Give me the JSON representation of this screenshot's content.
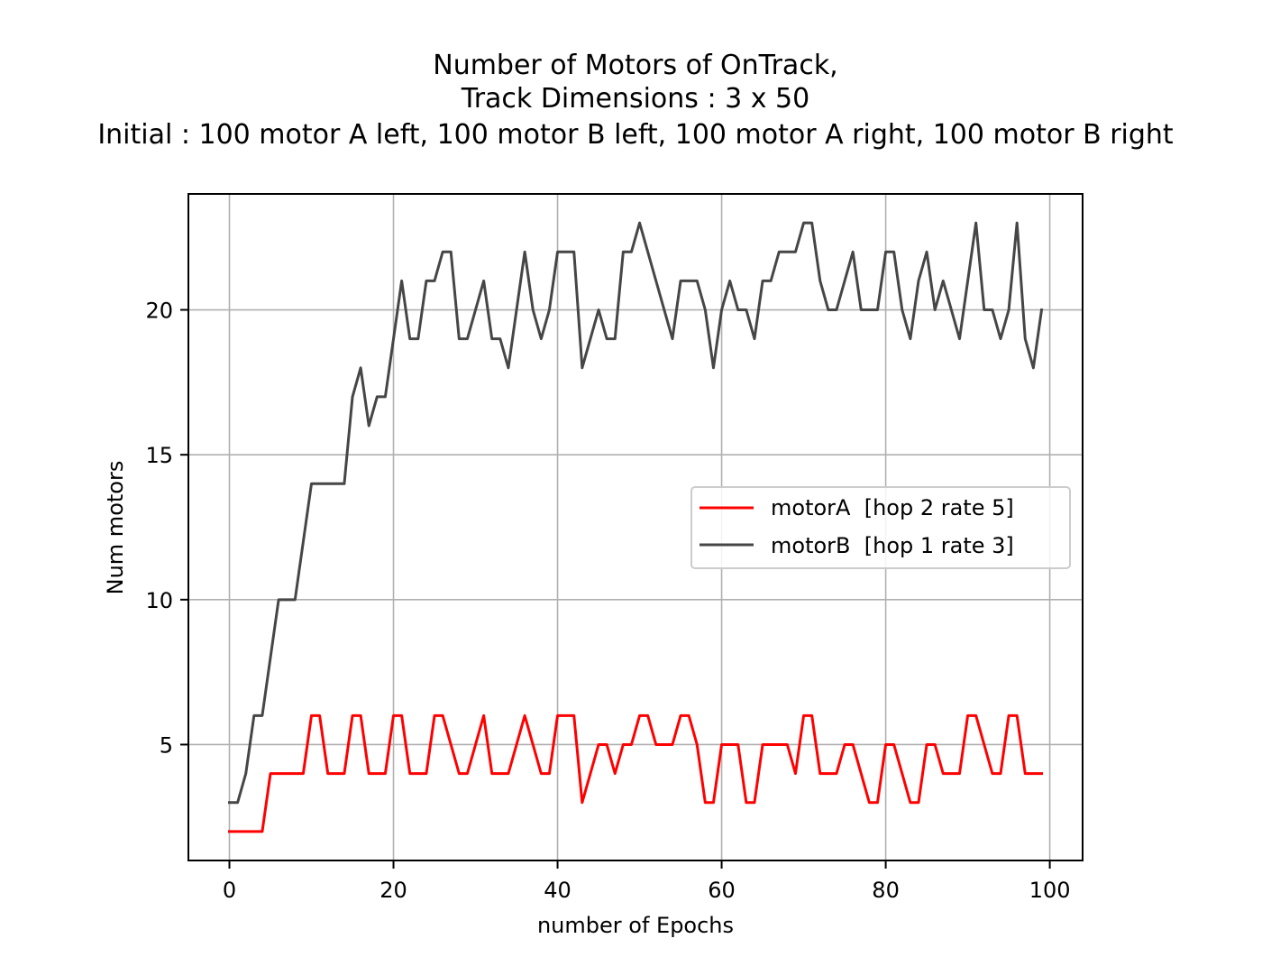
{
  "chart_data": {
    "type": "line",
    "title_lines": [
      "Number of Motors of OnTrack,",
      "Track Dimensions : 3 x 50",
      "Initial : 100 motor A left, 100 motor B left, 100 motor A right, 100 motor B right"
    ],
    "xlabel": "number of Epochs",
    "ylabel": "Num motors",
    "xlim": [
      -5,
      104
    ],
    "ylim": [
      1,
      24
    ],
    "xticks": [
      0,
      20,
      40,
      60,
      80,
      100
    ],
    "yticks": [
      5,
      10,
      15,
      20
    ],
    "grid": true,
    "legend_position": "center-right",
    "series": [
      {
        "name": "motorA  [hop 2 rate 5]",
        "color": "#ff0000",
        "x": [
          0,
          1,
          2,
          3,
          4,
          5,
          6,
          7,
          8,
          9,
          10,
          11,
          12,
          13,
          14,
          15,
          16,
          17,
          18,
          19,
          20,
          21,
          22,
          23,
          24,
          25,
          26,
          27,
          28,
          29,
          30,
          31,
          32,
          33,
          34,
          35,
          36,
          37,
          38,
          39,
          40,
          41,
          42,
          43,
          44,
          45,
          46,
          47,
          48,
          49,
          50,
          51,
          52,
          53,
          54,
          55,
          56,
          57,
          58,
          59,
          60,
          61,
          62,
          63,
          64,
          65,
          66,
          67,
          68,
          69,
          70,
          71,
          72,
          73,
          74,
          75,
          76,
          77,
          78,
          79,
          80,
          81,
          82,
          83,
          84,
          85,
          86,
          87,
          88,
          89,
          90,
          91,
          92,
          93,
          94,
          95,
          96,
          97,
          98,
          99
        ],
        "values": [
          2,
          2,
          2,
          2,
          2,
          4,
          4,
          4,
          4,
          4,
          6,
          6,
          4,
          4,
          4,
          6,
          6,
          4,
          4,
          4,
          6,
          6,
          4,
          4,
          4,
          6,
          6,
          5,
          4,
          4,
          5,
          6,
          4,
          4,
          4,
          5,
          6,
          5,
          4,
          4,
          6,
          6,
          6,
          3,
          4,
          5,
          5,
          4,
          5,
          5,
          6,
          6,
          5,
          5,
          5,
          6,
          6,
          5,
          3,
          3,
          5,
          5,
          5,
          3,
          3,
          5,
          5,
          5,
          5,
          4,
          6,
          6,
          4,
          4,
          4,
          5,
          5,
          4,
          3,
          3,
          5,
          5,
          4,
          3,
          3,
          5,
          5,
          4,
          4,
          4,
          6,
          6,
          5,
          4,
          4,
          6,
          6,
          4,
          4,
          4
        ]
      },
      {
        "name": "motorB  [hop 1 rate 3]",
        "color": "#464646",
        "x": [
          0,
          1,
          2,
          3,
          4,
          5,
          6,
          7,
          8,
          9,
          10,
          11,
          12,
          13,
          14,
          15,
          16,
          17,
          18,
          19,
          20,
          21,
          22,
          23,
          24,
          25,
          26,
          27,
          28,
          29,
          30,
          31,
          32,
          33,
          34,
          35,
          36,
          37,
          38,
          39,
          40,
          41,
          42,
          43,
          44,
          45,
          46,
          47,
          48,
          49,
          50,
          51,
          52,
          53,
          54,
          55,
          56,
          57,
          58,
          59,
          60,
          61,
          62,
          63,
          64,
          65,
          66,
          67,
          68,
          69,
          70,
          71,
          72,
          73,
          74,
          75,
          76,
          77,
          78,
          79,
          80,
          81,
          82,
          83,
          84,
          85,
          86,
          87,
          88,
          89,
          90,
          91,
          92,
          93,
          94,
          95,
          96,
          97,
          98,
          99
        ],
        "values": [
          3,
          3,
          4,
          6,
          6,
          8,
          10,
          10,
          10,
          12,
          14,
          14,
          14,
          14,
          14,
          17,
          18,
          16,
          17,
          17,
          19,
          21,
          19,
          19,
          21,
          21,
          22,
          22,
          19,
          19,
          20,
          21,
          19,
          19,
          18,
          20,
          22,
          20,
          19,
          20,
          22,
          22,
          22,
          18,
          19,
          20,
          19,
          19,
          22,
          22,
          23,
          22,
          21,
          20,
          19,
          21,
          21,
          21,
          20,
          18,
          20,
          21,
          20,
          20,
          19,
          21,
          21,
          22,
          22,
          22,
          23,
          23,
          21,
          20,
          20,
          21,
          22,
          20,
          20,
          20,
          22,
          22,
          20,
          19,
          21,
          22,
          20,
          21,
          20,
          19,
          21,
          23,
          20,
          20,
          19,
          20,
          23,
          19,
          18,
          20
        ]
      }
    ]
  }
}
